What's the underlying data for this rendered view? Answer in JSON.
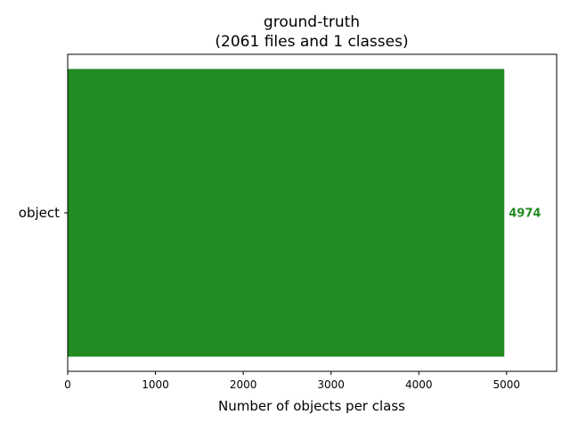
{
  "chart_data": {
    "type": "bar",
    "orientation": "horizontal",
    "title": "ground-truth\n(2061 files and 1 classes)",
    "title_lines": [
      "ground-truth",
      "(2061 files and 1 classes)"
    ],
    "xlabel": "Number of objects per class",
    "ylabel": "",
    "categories": [
      "object"
    ],
    "values": [
      4974
    ],
    "value_labels": [
      "4974"
    ],
    "xlim": [
      0,
      5570
    ],
    "xticks": [
      0,
      1000,
      2000,
      3000,
      4000,
      5000
    ],
    "xtick_labels": [
      "0",
      "1000",
      "2000",
      "3000",
      "4000",
      "5000"
    ],
    "grid": false,
    "bar_color": "#228b22",
    "value_label_color": "#228b22",
    "axis_color": "#000000",
    "text_color": "#000000"
  }
}
